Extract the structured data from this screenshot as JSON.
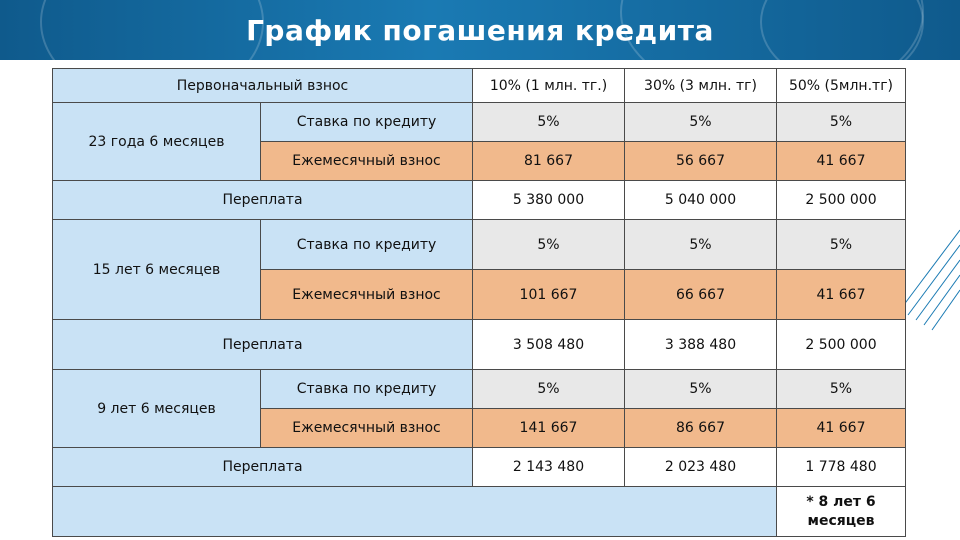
{
  "title": "График погашения кредита",
  "header": {
    "first_col": "Первоначальный взнос",
    "col1": "10% (1 млн. тг.)",
    "col2": "30% (3 млн. тг)",
    "col3": "50% (5млн.тг)"
  },
  "labels": {
    "rate": "Ставка по кредиту",
    "monthly": "Ежемесячный взнос",
    "overpay": "Переплата"
  },
  "groups": [
    {
      "term": "23 года 6 месяцев",
      "rate": [
        "5%",
        "5%",
        "5%"
      ],
      "monthly": [
        "81 667",
        "56 667",
        "41 667"
      ],
      "overpay": [
        "5 380 000",
        "5 040 000",
        "2 500 000"
      ]
    },
    {
      "term": "15 лет 6 месяцев",
      "rate": [
        "5%",
        "5%",
        "5%"
      ],
      "monthly": [
        "101 667",
        "66 667",
        "41 667"
      ],
      "overpay": [
        "3 508 480",
        "3 388 480",
        "2 500 000"
      ]
    },
    {
      "term": "9 лет 6 месяцев",
      "rate": [
        "5%",
        "5%",
        "5%"
      ],
      "monthly": [
        "141 667",
        "86 667",
        "41 667"
      ],
      "overpay": [
        "2 143 480",
        "2 023 480",
        "1 778 480"
      ]
    }
  ],
  "footnote": "* 8 лет 6 месяцев",
  "colors": {
    "title_bar": "#1a7ab3",
    "label_blue": "#c9e2f5",
    "cell_gray": "#e8e8e8",
    "cell_peach": "#f1b98c"
  }
}
